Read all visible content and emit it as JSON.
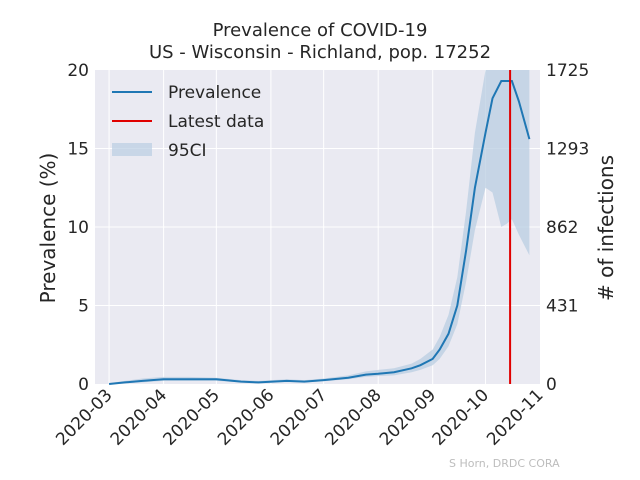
{
  "chart_data": {
    "type": "line",
    "title": "Prevalence of COVID-19",
    "subtitle": "US - Wisconsin - Richland, pop. 17252",
    "ylabel": "Prevalence (%)",
    "y2label": "# of infections",
    "ylim": [
      0,
      20
    ],
    "y2lim": [
      0,
      1725
    ],
    "yticks": [
      "0",
      "5",
      "10",
      "15",
      "20"
    ],
    "y2ticks": [
      "0",
      "431",
      "862",
      "1293",
      "1725"
    ],
    "xticks": [
      "2020-03",
      "2020-04",
      "2020-05",
      "2020-06",
      "2020-07",
      "2020-08",
      "2020-09",
      "2020-10",
      "2020-11"
    ],
    "grid": true,
    "legend_position": "top-left",
    "legend": [
      "Prevalence",
      "Latest data",
      "95CI"
    ],
    "latest_data_date": "2020-10-15",
    "colors": {
      "prevalence": "#1f77b4",
      "latest": "#e00000",
      "ci": "#b9cde2",
      "plot_bg": "#eaeaf2"
    },
    "series": [
      {
        "name": "Prevalence",
        "x": [
          "2020-03-01",
          "2020-03-10",
          "2020-03-20",
          "2020-04-01",
          "2020-04-15",
          "2020-05-01",
          "2020-05-15",
          "2020-05-25",
          "2020-06-10",
          "2020-06-20",
          "2020-07-01",
          "2020-07-15",
          "2020-07-25",
          "2020-08-01",
          "2020-08-10",
          "2020-08-20",
          "2020-08-25",
          "2020-09-01",
          "2020-09-05",
          "2020-09-10",
          "2020-09-15",
          "2020-09-20",
          "2020-09-25",
          "2020-10-01",
          "2020-10-05",
          "2020-10-10",
          "2020-10-13",
          "2020-10-16",
          "2020-10-20",
          "2020-10-26"
        ],
        "values": [
          0.0,
          0.1,
          0.2,
          0.3,
          0.3,
          0.3,
          0.15,
          0.1,
          0.2,
          0.15,
          0.25,
          0.4,
          0.6,
          0.65,
          0.75,
          1.0,
          1.2,
          1.6,
          2.2,
          3.2,
          5.0,
          8.5,
          12.5,
          16.0,
          18.2,
          19.3,
          19.3,
          19.3,
          18.0,
          15.6
        ]
      }
    ],
    "ci_upper": [
      0.05,
      0.2,
      0.35,
      0.45,
      0.45,
      0.4,
      0.25,
      0.2,
      0.3,
      0.25,
      0.35,
      0.55,
      0.8,
      0.9,
      1.0,
      1.3,
      1.6,
      2.2,
      3.0,
      4.4,
      6.8,
      11.0,
      16.0,
      20.0,
      20.0,
      20.0,
      20.0,
      20.0,
      20.0,
      20.0
    ],
    "ci_lower": [
      0.0,
      0.05,
      0.1,
      0.2,
      0.2,
      0.2,
      0.1,
      0.05,
      0.12,
      0.1,
      0.18,
      0.3,
      0.45,
      0.5,
      0.55,
      0.75,
      0.9,
      1.2,
      1.6,
      2.4,
      3.8,
      6.5,
      9.8,
      12.5,
      12.2,
      10.0,
      10.2,
      10.5,
      9.5,
      8.2
    ]
  },
  "credit": "S Horn, DRDC CORA"
}
